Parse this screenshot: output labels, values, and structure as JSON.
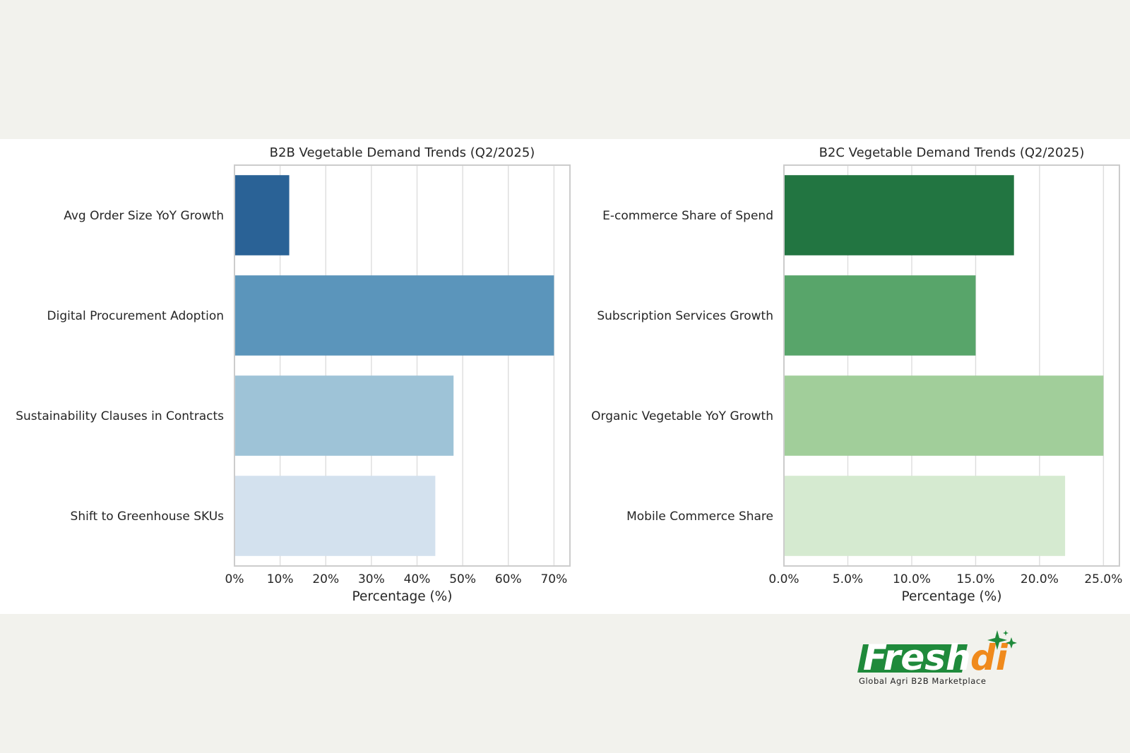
{
  "chart_data": [
    {
      "type": "bar",
      "orientation": "horizontal",
      "title": "B2B Vegetable Demand Trends (Q2/2025)",
      "categories": [
        "Avg Order Size YoY Growth",
        "Digital Procurement Adoption",
        "Sustainability Clauses in Contracts",
        "Shift to Greenhouse SKUs"
      ],
      "values": [
        12,
        70,
        48,
        44
      ],
      "colors": [
        "#2a6296",
        "#5b95bb",
        "#9ec3d7",
        "#d3e1ee"
      ],
      "xlabel": "Percentage (%)",
      "ylabel": "",
      "xlim": [
        0,
        73.5
      ],
      "ticks": [
        0,
        10,
        20,
        30,
        40,
        50,
        60,
        70
      ],
      "tick_labels": [
        "0%",
        "10%",
        "20%",
        "30%",
        "40%",
        "50%",
        "60%",
        "70%"
      ],
      "grid": true
    },
    {
      "type": "bar",
      "orientation": "horizontal",
      "title": "B2C Vegetable Demand Trends (Q2/2025)",
      "categories": [
        "E-commerce Share of Spend",
        "Subscription Services Growth",
        "Organic Vegetable YoY Growth",
        "Mobile Commerce Share"
      ],
      "values": [
        18,
        15,
        25,
        22
      ],
      "colors": [
        "#227541",
        "#58a56a",
        "#a1ce9a",
        "#d5ead0"
      ],
      "xlabel": "Percentage (%)",
      "ylabel": "",
      "xlim": [
        0,
        26.25
      ],
      "ticks": [
        0,
        5,
        10,
        15,
        20,
        25
      ],
      "tick_labels": [
        "0.0%",
        "5.0%",
        "10.0%",
        "15.0%",
        "20.0%",
        "25.0%"
      ],
      "grid": true
    }
  ],
  "brand": {
    "logo_fresh": "Fresh",
    "logo_di": "di",
    "tagline": "Global Agri B2B Marketplace",
    "green": "#1f8a3b",
    "orange": "#f08a1c"
  }
}
